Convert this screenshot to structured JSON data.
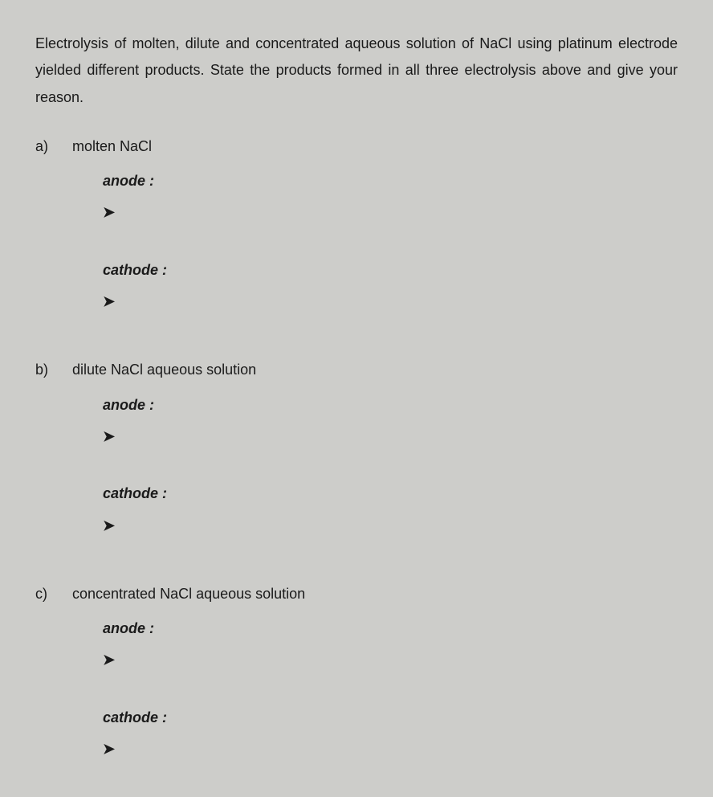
{
  "intro": "Electrolysis of molten, dilute and concentrated aqueous solution of NaCl using platinum electrode yielded different products. State the products formed in all three electrolysis above and give your reason.",
  "bullet_glyph": "➤",
  "parts": [
    {
      "letter": "a)",
      "title": "molten NaCl",
      "anode_label": "anode :",
      "cathode_label": "cathode :",
      "anode_answer": "",
      "cathode_answer": ""
    },
    {
      "letter": "b)",
      "title": "dilute NaCl aqueous solution",
      "anode_label": "anode :",
      "cathode_label": "cathode :",
      "anode_answer": "",
      "cathode_answer": ""
    },
    {
      "letter": "c)",
      "title": "concentrated NaCl aqueous solution",
      "anode_label": "anode :",
      "cathode_label": "cathode :",
      "anode_answer": "",
      "cathode_answer": ""
    }
  ]
}
